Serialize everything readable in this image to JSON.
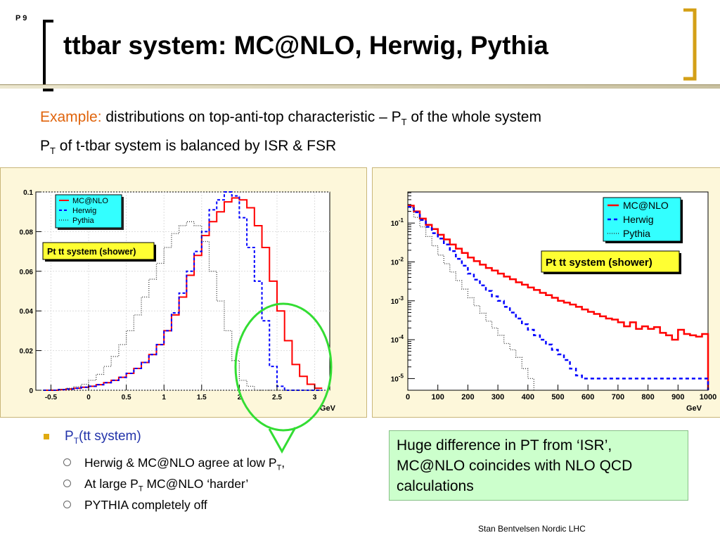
{
  "slide": {
    "page_number": "P 9",
    "title": "ttbar system: MC@NLO, Herwig, Pythia",
    "subtitle_line1_accent": "Example:",
    "subtitle_line1_rest": " distributions on top-anti-top characteristic – P",
    "subtitle_line1_sub": "T",
    "subtitle_line1_end": " of the whole system",
    "subtitle_line2_pre": "P",
    "subtitle_line2_sub": "T",
    "subtitle_line2_rest": " of t-tbar system is balanced by ISR & FSR",
    "footer": "Stan Bentvelsen Nordic LHC",
    "colors": {
      "accent": "#e0640c",
      "bracket": "#d4a017",
      "note_bg": "#ccffcc"
    }
  },
  "bullets": {
    "main_pre": "P",
    "main_sub": "T",
    "main_rest": "(tt system)",
    "items": [
      {
        "pre": "Herwig & MC@NLO agree at low P",
        "sub": "T",
        "post": ","
      },
      {
        "pre": "At large P",
        "sub": "T",
        "post": " MC@NLO ‘harder’"
      },
      {
        "pre": "PYTHIA completely off",
        "sub": "",
        "post": ""
      }
    ]
  },
  "note": {
    "line1": "Huge difference in PT from ‘ISR’,",
    "line2": "MC@NLO coincides with NLO QCD",
    "line3": "calculations"
  },
  "chart_data": [
    {
      "type": "line",
      "scale": "linear",
      "xlabel": "GeV",
      "xlim": [
        -0.7,
        3.2
      ],
      "ylim": [
        0,
        0.1
      ],
      "xticks": [
        "-0.5",
        "0",
        "0.5",
        "1",
        "1.5",
        "2",
        "2.5",
        "3"
      ],
      "yticks": [
        "0",
        "0.02",
        "0.04",
        "0.06",
        "0.08",
        "0.1"
      ],
      "annotation": "Pt tt system (shower)",
      "legend": [
        "MC@NLO",
        "Herwig",
        "Pythia"
      ],
      "legend_position": "top-left",
      "bin_width": 0.1,
      "x_start": -0.6,
      "series": [
        {
          "name": "MC@NLO",
          "color": "#ff0000",
          "style": "solid",
          "values": [
            0.0,
            0.0,
            0.0003,
            0.0006,
            0.001,
            0.0015,
            0.002,
            0.0028,
            0.0038,
            0.005,
            0.0065,
            0.0085,
            0.011,
            0.014,
            0.018,
            0.023,
            0.03,
            0.038,
            0.047,
            0.058,
            0.068,
            0.078,
            0.085,
            0.09,
            0.095,
            0.097,
            0.096,
            0.092,
            0.083,
            0.072,
            0.055,
            0.04,
            0.025,
            0.013,
            0.007,
            0.003,
            0.001
          ]
        },
        {
          "name": "Herwig",
          "color": "#0000ff",
          "style": "dashed",
          "values": [
            0.0,
            0.0,
            0.0003,
            0.0006,
            0.001,
            0.0015,
            0.002,
            0.0028,
            0.0038,
            0.005,
            0.0065,
            0.0085,
            0.011,
            0.014,
            0.018,
            0.023,
            0.03,
            0.039,
            0.049,
            0.06,
            0.07,
            0.08,
            0.091,
            0.096,
            0.1,
            0.098,
            0.087,
            0.072,
            0.055,
            0.035,
            0.012,
            0.002,
            0.0,
            0.0,
            0.0,
            0.0,
            0.0
          ]
        },
        {
          "name": "Pythia",
          "color": "#333333",
          "style": "dotted",
          "values": [
            0.0,
            0.0,
            0.0005,
            0.001,
            0.0018,
            0.003,
            0.005,
            0.008,
            0.012,
            0.017,
            0.023,
            0.03,
            0.038,
            0.047,
            0.056,
            0.064,
            0.072,
            0.079,
            0.083,
            0.085,
            0.083,
            0.075,
            0.06,
            0.045,
            0.03,
            0.015,
            0.005,
            0.002,
            0.0,
            0.0,
            0.0,
            0.0,
            0.0,
            0.0,
            0.0,
            0.0,
            0.0
          ]
        }
      ]
    },
    {
      "type": "line",
      "scale": "log",
      "xlabel": "GeV",
      "xlim": [
        0,
        1000
      ],
      "ylim_log10": [
        -5.3,
        -0.2
      ],
      "xticks": [
        "0",
        "100",
        "200",
        "300",
        "400",
        "500",
        "600",
        "700",
        "800",
        "900",
        "1000"
      ],
      "yticks": [
        "10-5",
        "10-4",
        "10-3",
        "10-2",
        "10-1"
      ],
      "annotation": "Pt tt system (shower)",
      "legend": [
        "MC@NLO",
        "Herwig",
        "Pythia"
      ],
      "legend_position": "top-right",
      "bin_width": 20,
      "series": [
        {
          "name": "MC@NLO",
          "color": "#ff0000",
          "style": "solid",
          "values": [
            0.28,
            0.2,
            0.13,
            0.09,
            0.07,
            0.05,
            0.038,
            0.028,
            0.022,
            0.017,
            0.013,
            0.0105,
            0.0085,
            0.007,
            0.006,
            0.005,
            0.0042,
            0.0036,
            0.003,
            0.0026,
            0.0022,
            0.0019,
            0.0016,
            0.0014,
            0.0012,
            0.001,
            0.0009,
            0.0008,
            0.0007,
            0.0006,
            0.00052,
            0.00046,
            0.0004,
            0.00035,
            0.00033,
            0.00028,
            0.00022,
            0.00028,
            0.00019,
            0.00022,
            0.00019,
            0.00021,
            0.00015,
            0.00013,
            0.0001,
            0.00018,
            0.00014,
            0.00013,
            0.00012,
            0.00014
          ]
        },
        {
          "name": "Herwig",
          "color": "#0000ff",
          "style": "dashed",
          "values": [
            0.26,
            0.19,
            0.12,
            0.08,
            0.055,
            0.04,
            0.028,
            0.019,
            0.012,
            0.008,
            0.005,
            0.0035,
            0.0025,
            0.0018,
            0.0013,
            0.001,
            0.0007,
            0.0005,
            0.00035,
            0.00025,
            0.00018,
            0.00013,
            0.0001,
            7.5e-05,
            5.5e-05,
            4.2e-05,
            3e-05,
            1.8e-05,
            1.2e-05,
            1e-05,
            1e-05,
            1e-05,
            1e-05,
            1e-05,
            1e-05,
            1e-05,
            1e-05,
            1e-05,
            1e-05,
            1e-05,
            1e-05,
            1e-05,
            1e-05,
            1e-05,
            1e-05,
            1e-05,
            1e-05,
            1e-05,
            1e-05,
            1e-05
          ]
        },
        {
          "name": "Pythia",
          "color": "#333333",
          "style": "dotted",
          "values": [
            0.25,
            0.14,
            0.08,
            0.045,
            0.026,
            0.015,
            0.009,
            0.0055,
            0.0033,
            0.002,
            0.0012,
            0.00075,
            0.00048,
            0.0003,
            0.0002,
            0.00013,
            8e-05,
            5.5e-05,
            3.5e-05,
            1.8e-05,
            1e-05
          ]
        }
      ]
    }
  ]
}
